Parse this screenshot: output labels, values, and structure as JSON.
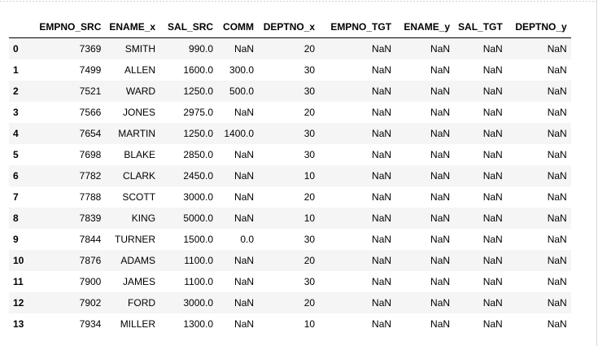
{
  "table": {
    "index_header": "",
    "columns": [
      "EMPNO_SRC",
      "ENAME_x",
      "SAL_SRC",
      "COMM",
      "DEPTNO_x",
      "EMPNO_TGT",
      "ENAME_y",
      "SAL_TGT",
      "DEPTNO_y"
    ],
    "rows": [
      {
        "index": "0",
        "cells": [
          "7369",
          "SMITH",
          "990.0",
          "NaN",
          "20",
          "NaN",
          "NaN",
          "NaN",
          "NaN"
        ]
      },
      {
        "index": "1",
        "cells": [
          "7499",
          "ALLEN",
          "1600.0",
          "300.0",
          "30",
          "NaN",
          "NaN",
          "NaN",
          "NaN"
        ]
      },
      {
        "index": "2",
        "cells": [
          "7521",
          "WARD",
          "1250.0",
          "500.0",
          "30",
          "NaN",
          "NaN",
          "NaN",
          "NaN"
        ]
      },
      {
        "index": "3",
        "cells": [
          "7566",
          "JONES",
          "2975.0",
          "NaN",
          "20",
          "NaN",
          "NaN",
          "NaN",
          "NaN"
        ]
      },
      {
        "index": "4",
        "cells": [
          "7654",
          "MARTIN",
          "1250.0",
          "1400.0",
          "30",
          "NaN",
          "NaN",
          "NaN",
          "NaN"
        ]
      },
      {
        "index": "5",
        "cells": [
          "7698",
          "BLAKE",
          "2850.0",
          "NaN",
          "30",
          "NaN",
          "NaN",
          "NaN",
          "NaN"
        ]
      },
      {
        "index": "6",
        "cells": [
          "7782",
          "CLARK",
          "2450.0",
          "NaN",
          "10",
          "NaN",
          "NaN",
          "NaN",
          "NaN"
        ]
      },
      {
        "index": "7",
        "cells": [
          "7788",
          "SCOTT",
          "3000.0",
          "NaN",
          "20",
          "NaN",
          "NaN",
          "NaN",
          "NaN"
        ]
      },
      {
        "index": "8",
        "cells": [
          "7839",
          "KING",
          "5000.0",
          "NaN",
          "10",
          "NaN",
          "NaN",
          "NaN",
          "NaN"
        ]
      },
      {
        "index": "9",
        "cells": [
          "7844",
          "TURNER",
          "1500.0",
          "0.0",
          "30",
          "NaN",
          "NaN",
          "NaN",
          "NaN"
        ]
      },
      {
        "index": "10",
        "cells": [
          "7876",
          "ADAMS",
          "1100.0",
          "NaN",
          "20",
          "NaN",
          "NaN",
          "NaN",
          "NaN"
        ]
      },
      {
        "index": "11",
        "cells": [
          "7900",
          "JAMES",
          "1100.0",
          "NaN",
          "30",
          "NaN",
          "NaN",
          "NaN",
          "NaN"
        ]
      },
      {
        "index": "12",
        "cells": [
          "7902",
          "FORD",
          "3000.0",
          "NaN",
          "20",
          "NaN",
          "NaN",
          "NaN",
          "NaN"
        ]
      },
      {
        "index": "13",
        "cells": [
          "7934",
          "MILLER",
          "1300.0",
          "NaN",
          "10",
          "NaN",
          "NaN",
          "NaN",
          "NaN"
        ]
      }
    ]
  },
  "colors": {
    "stripe": "#f5f5f5",
    "header_rule": "#000000",
    "text": "#000000"
  }
}
